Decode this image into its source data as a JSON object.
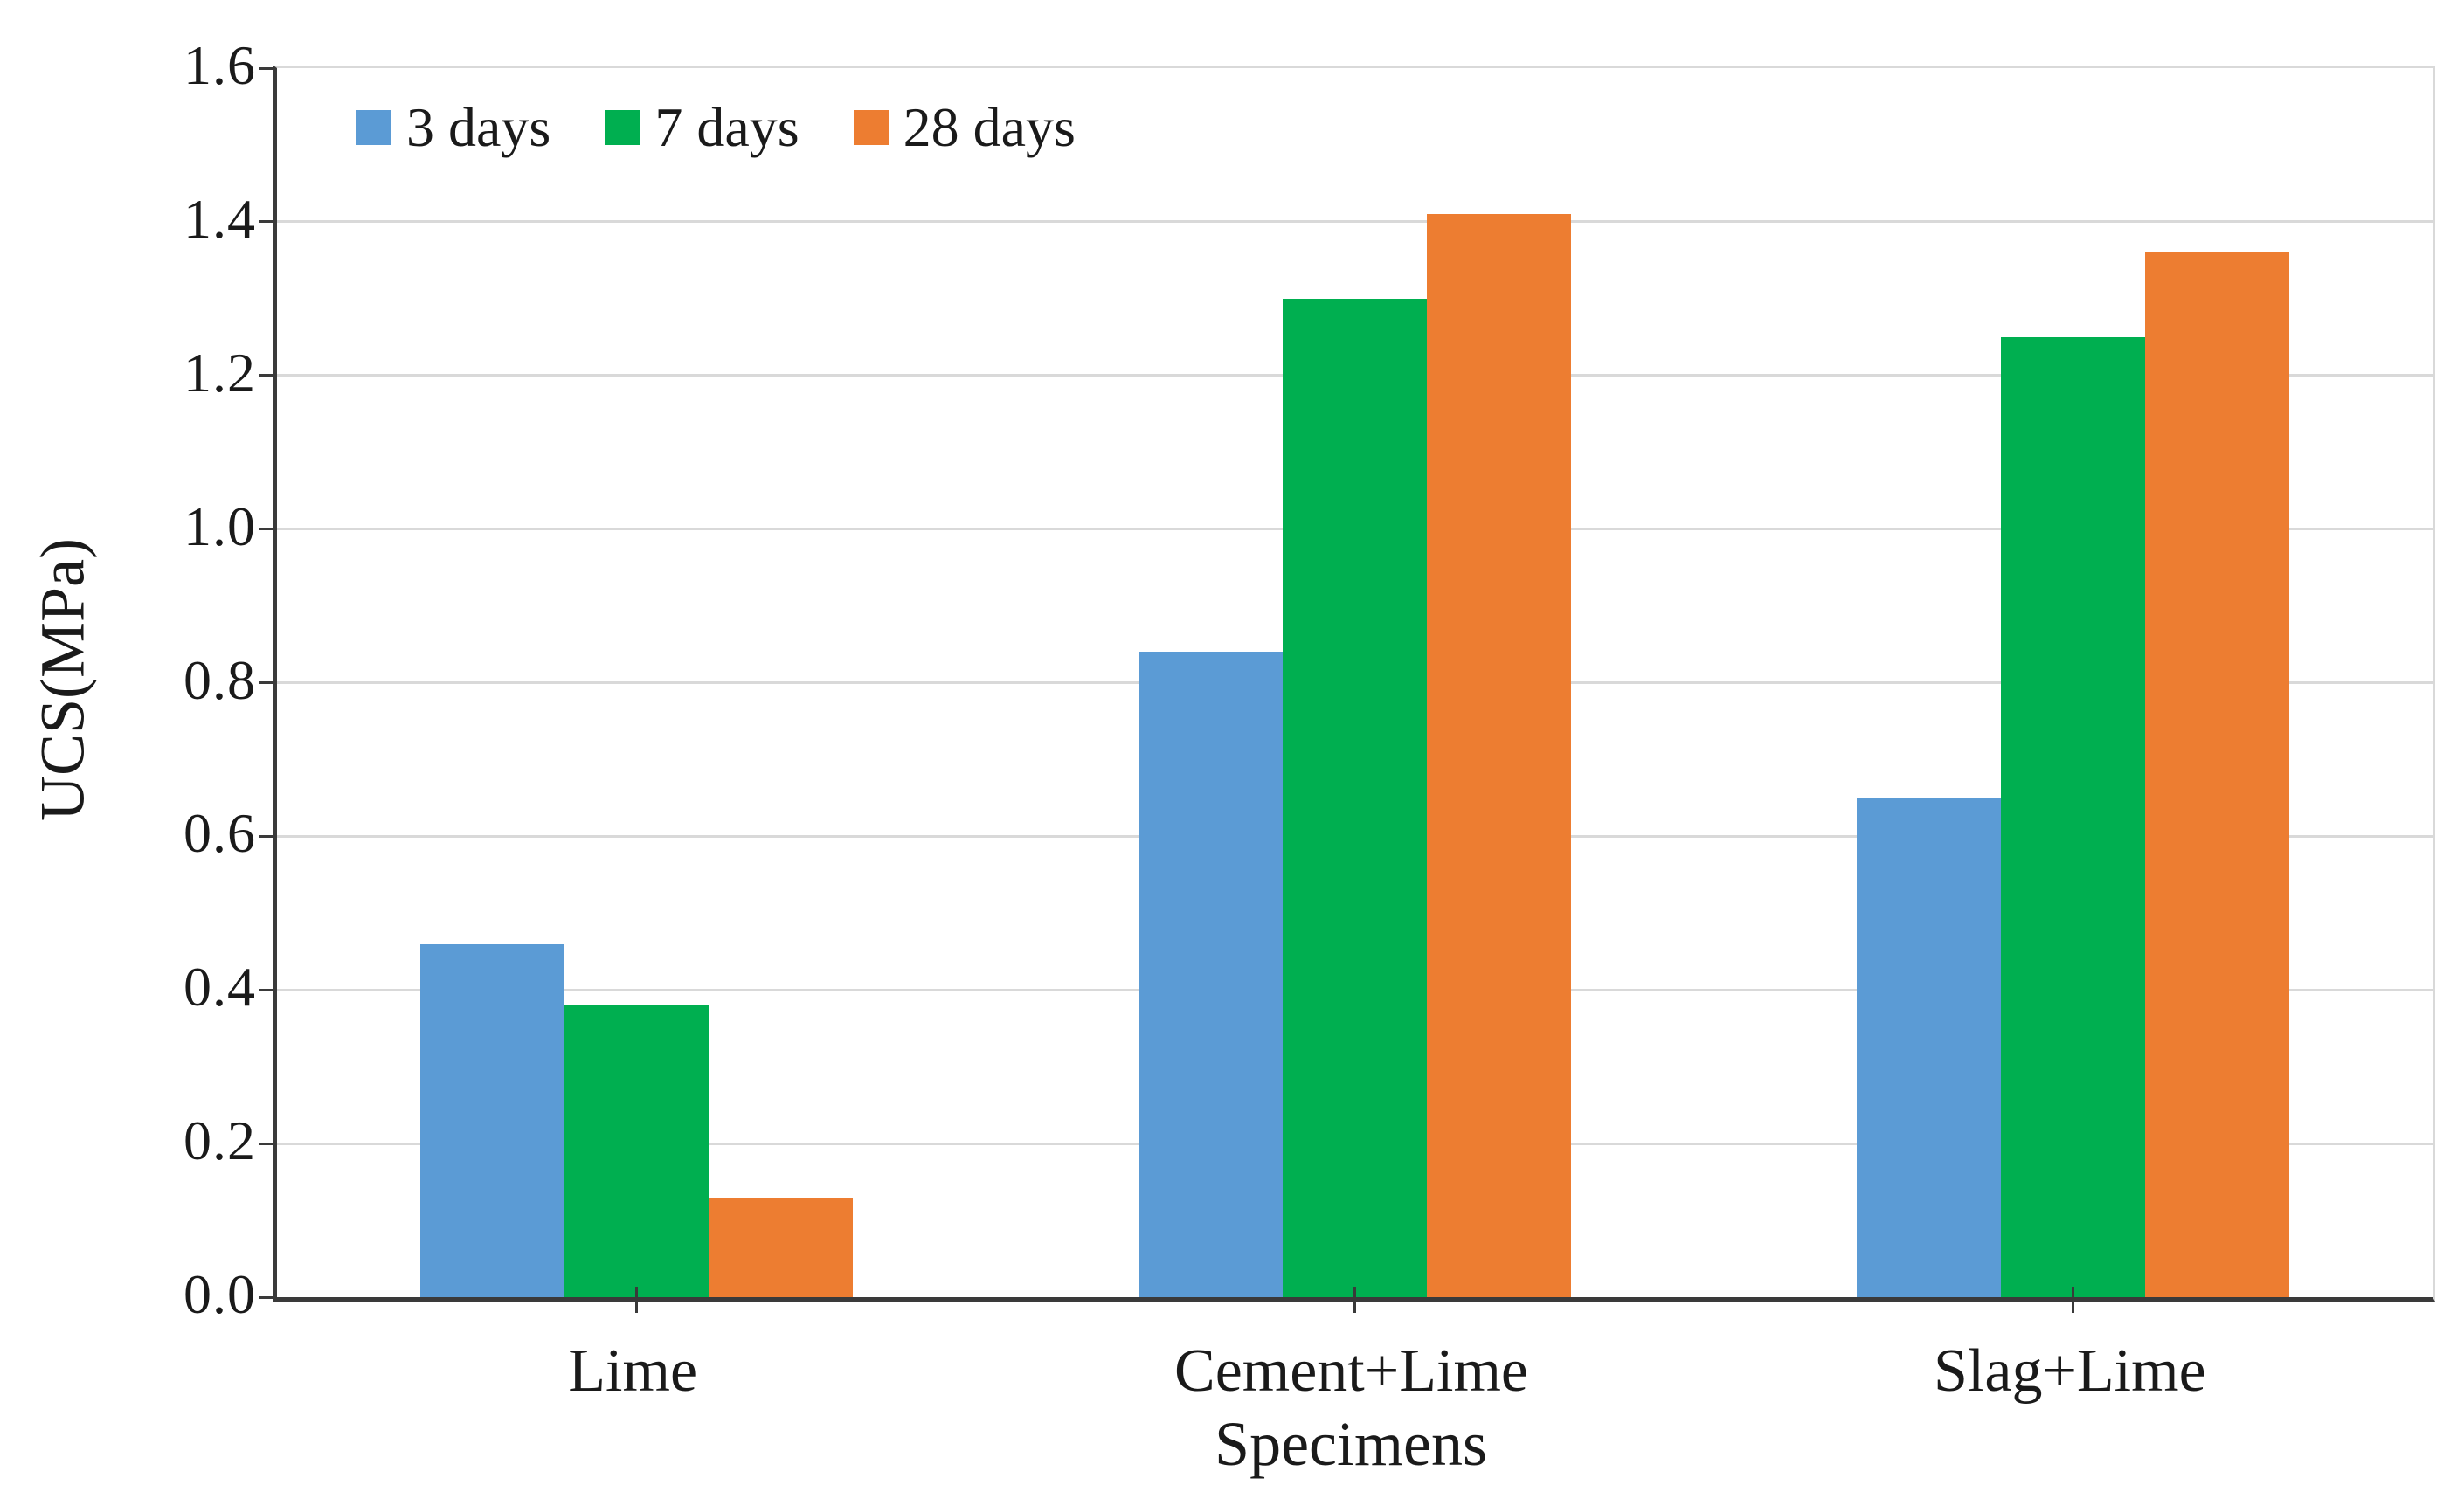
{
  "figure": {
    "background": "#ffffff",
    "gridline_color": "#d9d9d9",
    "axis_color": "#3a3a3a",
    "text_color": "#1a1a1a"
  },
  "chart_data": {
    "type": "bar",
    "title": "",
    "categories": [
      "Lime",
      "Cement+Lime",
      "Slag+Lime"
    ],
    "series": [
      {
        "name": "3 days",
        "color": "#5B9BD5",
        "values": [
          0.46,
          0.84,
          0.65
        ]
      },
      {
        "name": "7 days",
        "color": "#00AF50",
        "values": [
          0.38,
          1.3,
          1.25
        ]
      },
      {
        "name": "28 days",
        "color": "#ED7D31",
        "values": [
          0.13,
          1.41,
          1.36
        ]
      }
    ],
    "xlabel": "Specimens",
    "ylabel": "UCS(MPa)",
    "ylim": [
      0.0,
      1.6
    ],
    "ytick_step": 0.2,
    "ytick_labels": [
      "0.0",
      "0.2",
      "0.4",
      "0.6",
      "0.8",
      "1.0",
      "1.2",
      "1.4",
      "1.6"
    ],
    "grid": true,
    "legend_position": "top-left-inside"
  }
}
